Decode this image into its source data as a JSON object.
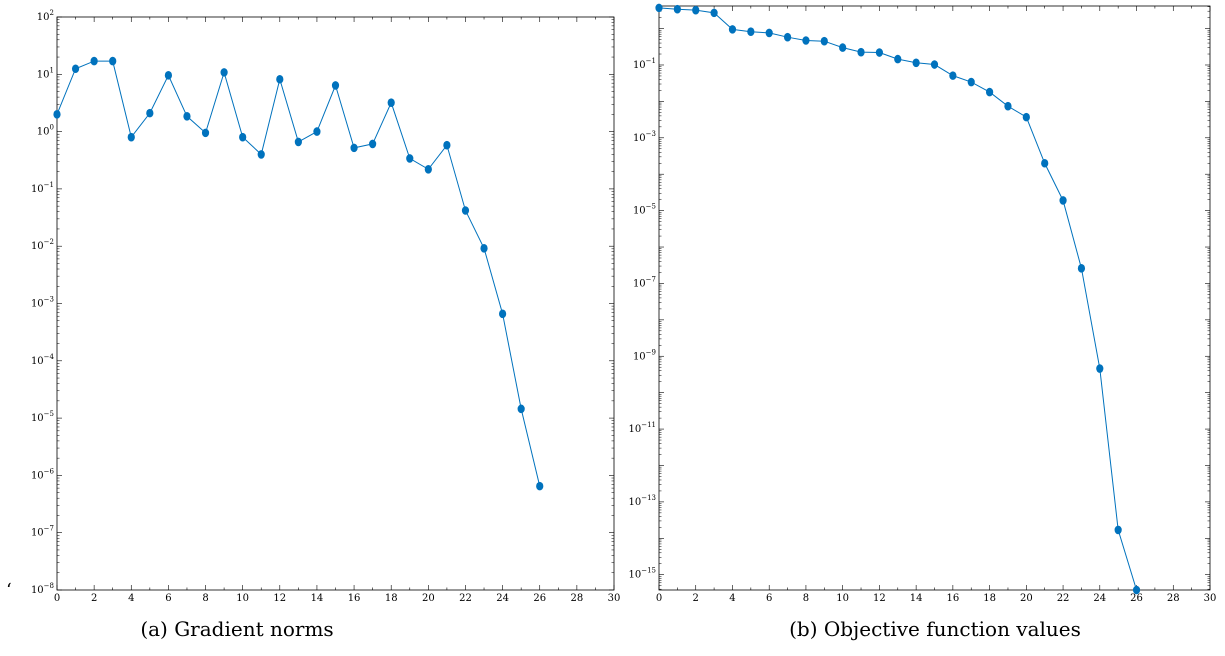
{
  "captions": {
    "a": "(a) Gradient norms",
    "b": "(b) Objective function values"
  },
  "stray_mark": "‘",
  "chart_data": [
    {
      "type": "line",
      "title": "",
      "caption_key": "a",
      "xlabel": "",
      "ylabel": "",
      "y_scale": "log",
      "xlim": [
        0,
        30
      ],
      "ylim_log10": [
        -8,
        2
      ],
      "x_ticks": [
        0,
        2,
        4,
        6,
        8,
        10,
        12,
        14,
        16,
        18,
        20,
        22,
        24,
        26,
        28,
        30
      ],
      "y_tick_exponents": [
        -8,
        -7,
        -6,
        -5,
        -4,
        -3,
        -2,
        -1,
        0,
        1,
        2
      ],
      "grid": false,
      "color": "#0072bd",
      "series": [
        {
          "x": [
            0,
            1,
            2,
            3,
            4,
            5,
            6,
            7,
            8,
            9,
            10,
            11,
            12,
            13,
            14,
            15,
            16,
            17,
            18,
            19,
            20,
            21,
            22,
            23,
            24,
            25,
            26
          ],
          "values": [
            2.0,
            12.5,
            17.0,
            17.0,
            0.8,
            2.1,
            9.6,
            1.85,
            0.95,
            10.8,
            0.8,
            0.4,
            8.2,
            0.66,
            1.0,
            6.4,
            0.52,
            0.61,
            3.2,
            0.34,
            0.22,
            0.58,
            0.042,
            0.0092,
            0.00066,
            1.45e-05,
            6.5e-07
          ]
        }
      ]
    },
    {
      "type": "line",
      "title": "",
      "caption_key": "b",
      "xlabel": "",
      "ylabel": "",
      "y_scale": "log",
      "xlim": [
        0,
        30
      ],
      "ylim_log10": [
        -15.42,
        0.62
      ],
      "x_ticks": [
        0,
        2,
        4,
        6,
        8,
        10,
        12,
        14,
        16,
        18,
        20,
        22,
        24,
        26,
        28,
        30
      ],
      "y_tick_exponents": [
        -15,
        -13,
        -11,
        -9,
        -7,
        -5,
        -3,
        -1
      ],
      "grid": false,
      "color": "#0072bd",
      "series": [
        {
          "x": [
            0,
            1,
            2,
            3,
            4,
            5,
            6,
            7,
            8,
            9,
            10,
            11,
            12,
            13,
            14,
            15,
            16,
            17,
            18,
            19,
            20,
            21,
            22,
            23,
            24,
            25,
            26
          ],
          "values": [
            3.7,
            3.4,
            3.2,
            2.7,
            0.95,
            0.82,
            0.76,
            0.58,
            0.47,
            0.45,
            0.3,
            0.225,
            0.22,
            0.145,
            0.115,
            0.103,
            0.051,
            0.034,
            0.018,
            0.0074,
            0.0037,
            0.0002,
            1.9e-05,
            2.6e-07,
            4.6e-10,
            1.7e-14,
            3.8e-16
          ]
        }
      ]
    }
  ]
}
